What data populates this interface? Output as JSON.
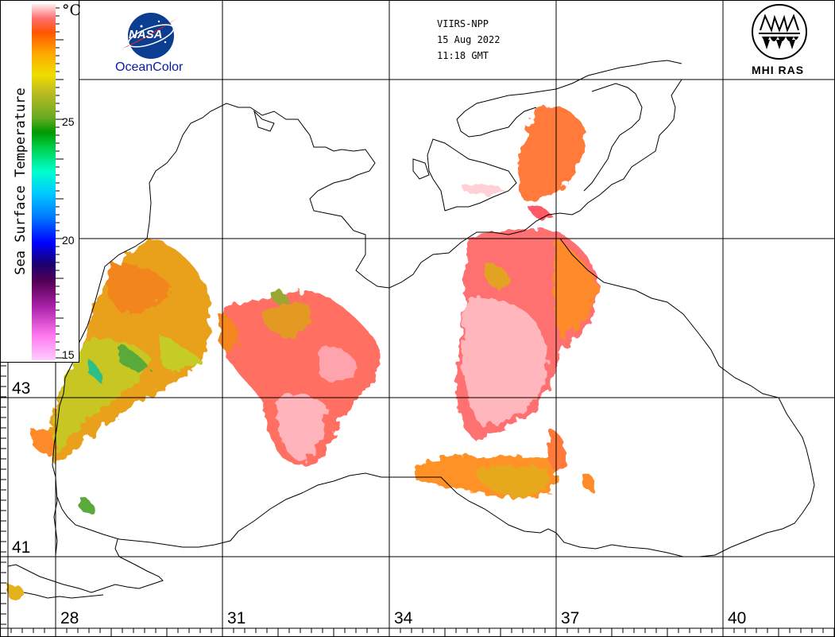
{
  "header": {
    "satellite": "VIIRS-NPP",
    "date": "15 Aug 2022",
    "time": "11:18 GMT"
  },
  "logos": {
    "nasa": {
      "emblem_text": "NASA",
      "caption": "OceanColor"
    },
    "mhi": {
      "caption": "MHI RAS"
    }
  },
  "colorbar": {
    "title": "Sea Surface Temperature",
    "unit": "°C",
    "ticks": [
      "25",
      "20",
      "15"
    ],
    "range": [
      15,
      30
    ],
    "colors": [
      "#ff99ff",
      "#cc33cc",
      "#660066",
      "#1a0070",
      "#0000ff",
      "#0099ff",
      "#00ffee",
      "#00cc66",
      "#009900",
      "#88bb22",
      "#d6d600",
      "#ffaa00",
      "#ff6600",
      "#ff5a5a",
      "#ffcccc"
    ]
  },
  "grid": {
    "longitude_labels": [
      "28",
      "31",
      "34",
      "37",
      "40"
    ],
    "latitude_labels": [
      "43",
      "41"
    ]
  },
  "sst_colors": {
    "warm_pink": "#ffb4bc",
    "salmon": "#ff6f6f",
    "orange": "#ff8a2a",
    "yellow": "#d8cf1e",
    "green": "#62b32d"
  }
}
